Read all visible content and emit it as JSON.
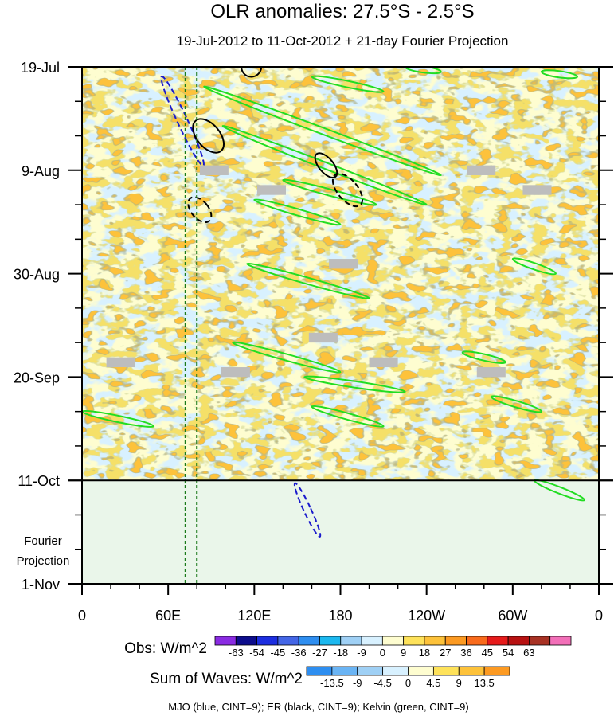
{
  "chart_data": {
    "type": "heatmap",
    "title": "OLR anomalies: 27.5°S - 2.5°S",
    "subtitle": "19-Jul-2012 to 11-Oct-2012 + 21-day Fourier Projection",
    "xlabel": "",
    "ylabel": "",
    "x_ticks": [
      "0",
      "60E",
      "120E",
      "180",
      "120W",
      "60W",
      "0"
    ],
    "x_range_deg_east": [
      0,
      360
    ],
    "y_ticks": [
      "19-Jul",
      "9-Aug",
      "30-Aug",
      "20-Sep",
      "11-Oct",
      "1-Nov"
    ],
    "y_range_days_since_19jul": [
      0,
      105
    ],
    "observed_end_day": 84,
    "fourier_label_line1": "Fourier",
    "fourier_label_line2": "Projection",
    "obs_colorbar": {
      "label": "Obs: W/m^2",
      "levels": [
        "-63",
        "-54",
        "-45",
        "-36",
        "-27",
        "-18",
        "-9",
        "0",
        "9",
        "18",
        "27",
        "36",
        "45",
        "54",
        "63"
      ],
      "colors": [
        "#8a2be2",
        "#0d0d8c",
        "#1c2ee0",
        "#4466e6",
        "#2e8ef0",
        "#1cb8ef",
        "#9fd0f5",
        "#d8f1ff",
        "#fefdd0",
        "#fee25a",
        "#fdc23a",
        "#fc9a22",
        "#f96b1c",
        "#e61b1b",
        "#b81212",
        "#a83224",
        "#f26fb8"
      ]
    },
    "waves_colorbar": {
      "label": "Sum of Waves: W/m^2",
      "levels": [
        "-13.5",
        "-9",
        "-4.5",
        "0",
        "4.5",
        "9",
        "13.5"
      ],
      "colors": [
        "#2e8ef0",
        "#6ab4f4",
        "#9fd0f5",
        "#d8f1ff",
        "#fefdd0",
        "#fee25a",
        "#fdc23a",
        "#fc9a22"
      ]
    },
    "contour_legend": "MJO (blue, CINT=9); ER (black, CINT=9); Kelvin (green, CINT=9)",
    "series": [
      {
        "name": "MJO",
        "color": "#1a1acc"
      },
      {
        "name": "ER",
        "color": "#000000"
      },
      {
        "name": "Kelvin",
        "color": "#22dd22"
      }
    ],
    "dashed_reference_lon_deg_east": [
      72,
      80
    ],
    "kelvin_segments": [
      {
        "lon_start": 85,
        "day_start": 4,
        "lon_end": 250,
        "day_end": 22
      },
      {
        "lon_start": 98,
        "day_start": 12,
        "lon_end": 240,
        "day_end": 28
      },
      {
        "lon_start": 140,
        "day_start": 23,
        "lon_end": 205,
        "day_end": 28
      },
      {
        "lon_start": 120,
        "day_start": 27,
        "lon_end": 180,
        "day_end": 32
      },
      {
        "lon_start": 115,
        "day_start": 40,
        "lon_end": 200,
        "day_end": 47
      },
      {
        "lon_start": 105,
        "day_start": 56,
        "lon_end": 180,
        "day_end": 62
      },
      {
        "lon_start": 155,
        "day_start": 63,
        "lon_end": 225,
        "day_end": 66
      },
      {
        "lon_start": 160,
        "day_start": 69,
        "lon_end": 210,
        "day_end": 73
      },
      {
        "lon_start": 160,
        "day_start": 2,
        "lon_end": 210,
        "day_end": 5
      },
      {
        "lon_start": 225,
        "day_start": 0,
        "lon_end": 250,
        "day_end": 1
      },
      {
        "lon_start": 320,
        "day_start": 1,
        "lon_end": 345,
        "day_end": 2
      },
      {
        "lon_start": 300,
        "day_start": 39,
        "lon_end": 330,
        "day_end": 42
      },
      {
        "lon_start": 265,
        "day_start": 58,
        "lon_end": 295,
        "day_end": 60
      },
      {
        "lon_start": 285,
        "day_start": 67,
        "lon_end": 320,
        "day_end": 70
      },
      {
        "lon_start": 0,
        "day_start": 70,
        "lon_end": 50,
        "day_end": 73
      },
      {
        "lon_start": 315,
        "day_start": 84,
        "lon_end": 350,
        "day_end": 88
      }
    ],
    "mjo_contours": [
      {
        "lon": 70,
        "day": 11,
        "rx": 7,
        "ry": 5
      },
      {
        "lon": 157,
        "day": 90,
        "rx": 5,
        "ry": 3
      }
    ],
    "er_contours": [
      {
        "lon": 88,
        "day": 14,
        "rx": 8,
        "ry": 4
      },
      {
        "lon": 185,
        "day": 25,
        "rx": 7,
        "ry": 4
      },
      {
        "lon": 170,
        "day": 20,
        "rx": 5,
        "ry": 3
      },
      {
        "lon": 82,
        "day": 29,
        "rx": 6,
        "ry": 3
      },
      {
        "lon": 118,
        "day": 0,
        "rx": 7,
        "ry": 2
      }
    ],
    "missing_data_boxes": [
      {
        "lon": 92,
        "day": 21
      },
      {
        "lon": 132,
        "day": 25
      },
      {
        "lon": 278,
        "day": 21
      },
      {
        "lon": 317,
        "day": 25
      },
      {
        "lon": 182,
        "day": 40
      },
      {
        "lon": 168,
        "day": 55
      },
      {
        "lon": 27,
        "day": 60
      },
      {
        "lon": 107,
        "day": 62
      },
      {
        "lon": 210,
        "day": 60
      },
      {
        "lon": 285,
        "day": 62
      }
    ]
  }
}
